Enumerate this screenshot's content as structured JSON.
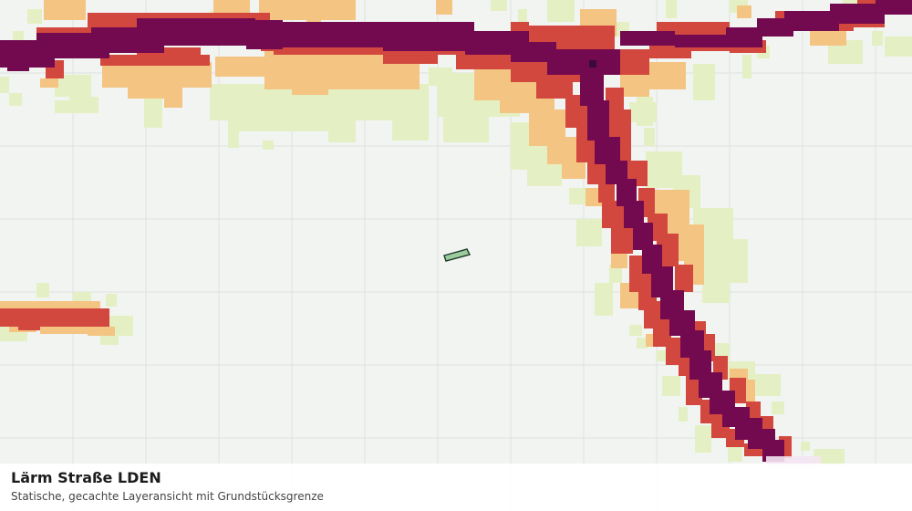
{
  "layer": {
    "title": "Lärm Straße LDEN",
    "subtitle": "Statische, gecachte Layeransicht mit Grundstücksgrenze"
  },
  "colors": {
    "background": "#f2f4f2",
    "grid": "#dfe2df",
    "band_outer": "#e4f0c4",
    "band_light": "#f4c483",
    "band_medium": "#d2483e",
    "band_high": "#730a50",
    "band_peak": "#3a0a3a",
    "parcel_fill": "#9ccc9c",
    "parcel_stroke": "#1c3a2a"
  },
  "noise_classes": [
    "outer",
    "light",
    "medium",
    "high"
  ]
}
